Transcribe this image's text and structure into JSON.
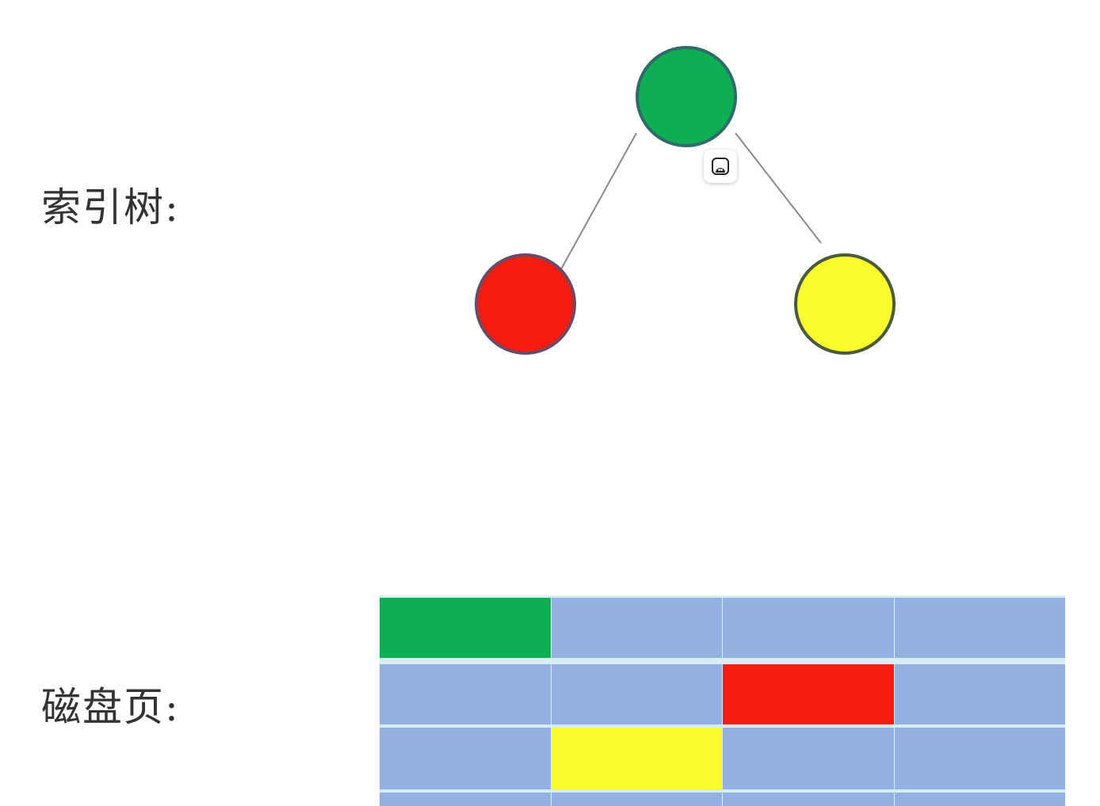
{
  "labels": {
    "index_tree": "索引树:",
    "disk_pages": "磁盘页:"
  },
  "tree": {
    "nodes": [
      {
        "id": "root",
        "color": "#0fae52",
        "stroke": "#2e6b6a"
      },
      {
        "id": "left-child",
        "color": "#f81c10",
        "stroke": "#6a4a66"
      },
      {
        "id": "right-child",
        "color": "#fafc2e",
        "stroke": "#4a5a3a"
      }
    ],
    "edges": [
      {
        "from": "root",
        "to": "left-child"
      },
      {
        "from": "root",
        "to": "right-child"
      }
    ],
    "edge_color": "#8a8a8a"
  },
  "floating_button": {
    "icon": "ghost-icon"
  },
  "disk_pages": {
    "columns": 4,
    "page_color": "#92b1e2",
    "grid_color": "#d6eef8",
    "rows": [
      [
        "#0fae52",
        "#92b1e2",
        "#92b1e2",
        "#92b1e2"
      ],
      [
        "#92b1e2",
        "#92b1e2",
        "#f81c10",
        "#92b1e2"
      ],
      [
        "#92b1e2",
        "#fafc2e",
        "#92b1e2",
        "#92b1e2"
      ],
      [
        "#92b1e2",
        "#92b1e2",
        "#92b1e2",
        "#92b1e2"
      ]
    ]
  }
}
